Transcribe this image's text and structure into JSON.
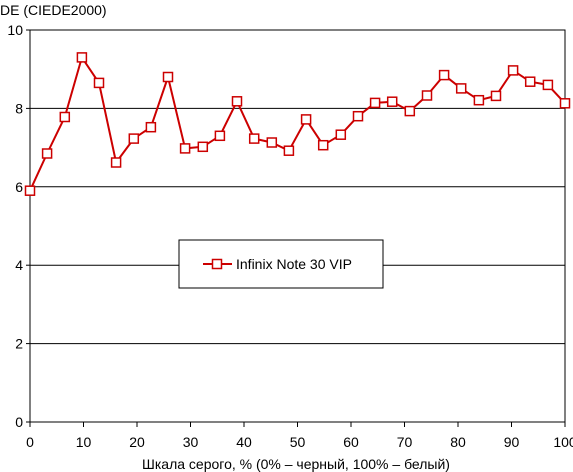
{
  "chart_data": {
    "type": "line",
    "ylabel": "DE (CIEDE2000)",
    "xlabel": "Шкала серого, % (0% – черный, 100% – белый)",
    "xlim": [
      0,
      100
    ],
    "ylim": [
      0,
      10
    ],
    "x_ticks": [
      0,
      10,
      20,
      30,
      40,
      50,
      60,
      70,
      80,
      90,
      100
    ],
    "y_ticks": [
      0,
      2,
      4,
      6,
      8,
      10
    ],
    "grid": "horizontal",
    "legend_position": "center",
    "series": [
      {
        "name": "Infinix Note 30 VIP",
        "color": "#cc0000",
        "marker": "square",
        "x": [
          0,
          3.2,
          6.5,
          9.7,
          12.9,
          16.1,
          19.4,
          22.6,
          25.8,
          29.0,
          32.3,
          35.5,
          38.7,
          41.9,
          45.2,
          48.4,
          51.6,
          54.8,
          58.1,
          61.3,
          64.5,
          67.7,
          71.0,
          74.2,
          77.4,
          80.6,
          83.9,
          87.1,
          90.3,
          93.5,
          96.8,
          100
        ],
        "values": [
          5.9,
          6.85,
          7.78,
          9.3,
          8.65,
          6.62,
          7.23,
          7.52,
          8.8,
          6.98,
          7.02,
          7.3,
          8.18,
          7.23,
          7.13,
          6.92,
          7.72,
          7.06,
          7.33,
          7.8,
          8.14,
          8.17,
          7.93,
          8.33,
          8.85,
          8.51,
          8.21,
          8.32,
          8.97,
          8.68,
          8.6,
          8.13
        ]
      }
    ]
  }
}
